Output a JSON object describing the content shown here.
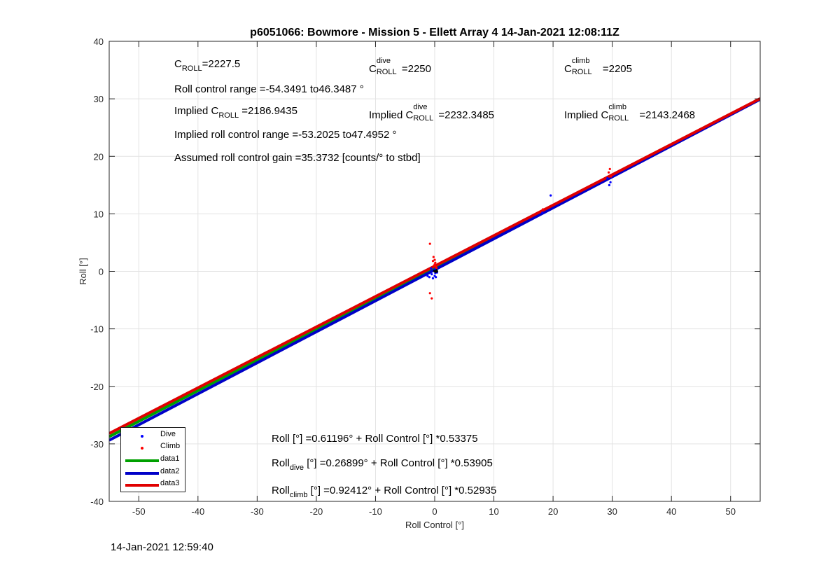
{
  "chart_data": {
    "type": "scatter",
    "title": "p6051066: Bowmore - Mission 5 - Ellett Array 4 14-Jan-2021 12:08:11Z",
    "xlabel": "Roll Control [°]",
    "ylabel": "Roll [°]",
    "xlim": [
      -55,
      55
    ],
    "ylim": [
      -40,
      40
    ],
    "xticks": [
      -50,
      -40,
      -30,
      -20,
      -10,
      0,
      10,
      20,
      30,
      40,
      50
    ],
    "yticks": [
      -40,
      -30,
      -20,
      -10,
      0,
      10,
      20,
      30,
      40
    ],
    "grid": true,
    "legend_position": "bottom-left",
    "series": [
      {
        "name": "Dive",
        "kind": "points",
        "color": "#0000ff",
        "points": [
          [
            -0.9,
            -1.0
          ],
          [
            -0.5,
            -0.5
          ],
          [
            -0.3,
            -1.2
          ],
          [
            0.0,
            -0.8
          ],
          [
            -0.2,
            0.2
          ],
          [
            0.1,
            -0.3
          ],
          [
            0.3,
            0.0
          ],
          [
            -0.6,
            0.5
          ],
          [
            0.2,
            -1.0
          ],
          [
            -1.2,
            -0.8
          ],
          [
            0.4,
            -0.2
          ],
          [
            0.1,
            0.4
          ],
          [
            18.2,
            10.2
          ],
          [
            19.6,
            13.2
          ],
          [
            29.5,
            15.0
          ],
          [
            29.7,
            15.5
          ],
          [
            29.2,
            16.2
          ]
        ]
      },
      {
        "name": "Climb",
        "kind": "points",
        "color": "#ff0000",
        "points": [
          [
            -0.8,
            4.8
          ],
          [
            -0.8,
            -3.8
          ],
          [
            -0.5,
            -4.7
          ],
          [
            -0.2,
            2.5
          ],
          [
            0.0,
            2.0
          ],
          [
            0.1,
            1.5
          ],
          [
            -0.1,
            1.0
          ],
          [
            0.2,
            0.8
          ],
          [
            -0.3,
            1.8
          ],
          [
            0.0,
            1.2
          ],
          [
            0.3,
            0.6
          ],
          [
            18.3,
            10.8
          ],
          [
            29.6,
            17.8
          ],
          [
            29.4,
            17.2
          ],
          [
            29.8,
            16.5
          ]
        ]
      },
      {
        "name": "",
        "kind": "points",
        "color": "#000000",
        "points": [
          [
            0.0,
            0.0
          ],
          [
            0.2,
            -0.1
          ],
          [
            -0.1,
            0.1
          ],
          [
            0.3,
            0.2
          ],
          [
            0.4,
            0.0
          ]
        ]
      },
      {
        "name": "data1",
        "kind": "line",
        "color": "#00a000",
        "intercept": 0.61196,
        "slope": 0.53375
      },
      {
        "name": "data2",
        "kind": "line",
        "color": "#0000c8",
        "intercept": 0.26899,
        "slope": 0.53905
      },
      {
        "name": "data3",
        "kind": "line",
        "color": "#e00000",
        "intercept": 0.92412,
        "slope": 0.52935
      }
    ],
    "annotations": {
      "c_roll": {
        "base": "C",
        "sub": "ROLL",
        "value": "=2227.5"
      },
      "c_roll_dive": {
        "base": "C",
        "sup": "dive",
        "sub": "ROLL",
        "value": "=2250"
      },
      "c_roll_climb": {
        "base": "C",
        "sup": "climb",
        "sub": "ROLL",
        "value": "=2205"
      },
      "roll_range": "Roll control range =-54.3491 to46.3487 °",
      "implied_c_roll": {
        "prefix": "Implied C",
        "sub": "ROLL",
        "value": "=2186.9435"
      },
      "implied_c_roll_dive": {
        "prefix": "Implied C",
        "sup": "dive",
        "sub": "ROLL",
        "value": "=2232.3485"
      },
      "implied_c_roll_climb": {
        "prefix": "Implied C",
        "sup": "climb",
        "sub": "ROLL",
        "value": "=2143.2468"
      },
      "implied_range": "Implied roll control range =-53.2025 to47.4952 °",
      "gain": "Assumed roll control gain =35.3732 [counts/° to stbd]",
      "fit_all": "Roll [°] =0.61196° + Roll Control [°] *0.53375",
      "fit_dive": {
        "base": "Roll",
        "sub": "dive",
        "rest": " [°] =0.26899° + Roll Control [°] *0.53905"
      },
      "fit_climb": {
        "base": "Roll",
        "sub": "climb",
        "rest": " [°] =0.92412° + Roll Control [°] *0.52935"
      }
    }
  },
  "timestamp": "14-Jan-2021 12:59:40"
}
